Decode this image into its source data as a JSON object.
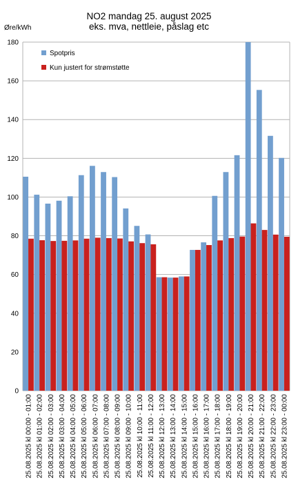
{
  "chart_data": {
    "type": "bar",
    "title": "NO2 mandag 25. august 2025",
    "subtitle": "eks. mva, nettleie, påslag etc",
    "ylabel": "Øre/kWh",
    "xlabel": "",
    "ylim": [
      0,
      180
    ],
    "yticks": [
      0,
      20,
      40,
      60,
      80,
      100,
      120,
      140,
      160,
      180
    ],
    "grid": true,
    "legend_position": "top-left",
    "categories": [
      "25.08.2025 kl 00:00 - 01:00",
      "25.08.2025 kl 01:00 - 02:00",
      "25.08.2025 kl 02:00 - 03:00",
      "25.08.2025 kl 03:00 - 04:00",
      "25.08.2025 kl 04:00 - 05:00",
      "25.08.2025 kl 05:00 - 06:00",
      "25.08.2025 kl 06:00 - 07:00",
      "25.08.2025 kl 07:00 - 08:00",
      "25.08.2025 kl 08:00 - 09:00",
      "25.08.2025 kl 09:00 - 10:00",
      "25.08.2025 kl 10:00 - 11:00",
      "25.08.2025 kl 11:00 - 12:00",
      "25.08.2025 kl 12:00 - 13:00",
      "25.08.2025 kl 13:00 - 14:00",
      "25.08.2025 kl 14:00 - 15:00",
      "25.08.2025 kl 15:00 - 16:00",
      "25.08.2025 kl 16:00 - 17:00",
      "25.08.2025 kl 17:00 - 18:00",
      "25.08.2025 kl 18:00 - 19:00",
      "25.08.2025 kl 19:00 - 20:00",
      "25.08.2025 kl 20:00 - 21:00",
      "25.08.2025 kl 21:00 - 22:00",
      "25.08.2025 kl 22:00 - 23:00",
      "25.08.2025 kl 23:00 - 00:00"
    ],
    "series": [
      {
        "name": "Spotpris",
        "color": "#729fcf",
        "values": [
          110.5,
          101.2,
          96.6,
          98.1,
          100.4,
          111.3,
          116.1,
          112.9,
          110.3,
          94.1,
          85.1,
          80.7,
          58.6,
          58.4,
          59.0,
          72.7,
          76.6,
          100.6,
          112.9,
          121.6,
          180.0,
          155.3,
          131.6,
          120.2
        ]
      },
      {
        "name": "Kun justert for strømstøtte",
        "color": "#c9211e",
        "values": [
          78.5,
          77.7,
          77.3,
          77.4,
          77.6,
          78.5,
          79.0,
          78.8,
          78.6,
          77.1,
          76.2,
          75.6,
          58.6,
          58.4,
          59.0,
          72.7,
          75.2,
          77.6,
          78.8,
          79.6,
          86.4,
          83.0,
          80.6,
          79.5
        ]
      }
    ]
  }
}
